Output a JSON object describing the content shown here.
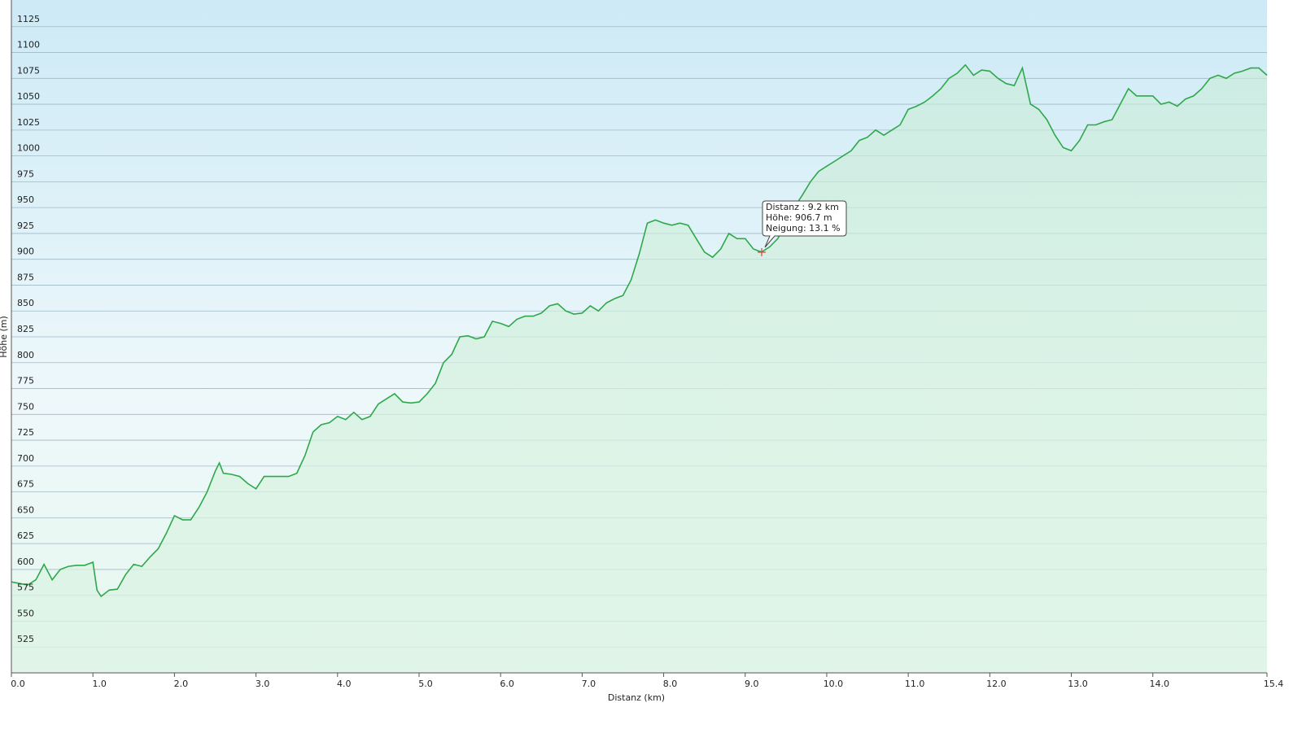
{
  "chart_data": {
    "type": "line",
    "title_x": "Distanz  (km)",
    "title_y": "Höhe (m)",
    "annotation": [
      "Distanz  : 9.2 km",
      "Höhe: 906.7 m",
      "Neigung: 13.1 %"
    ],
    "xlim": [
      0,
      15.4
    ],
    "ylim": [
      500,
      1150
    ],
    "xticks": [
      {
        "value": 0,
        "label": "0.0"
      },
      {
        "value": 1,
        "label": "1.0"
      },
      {
        "value": 2,
        "label": "2.0"
      },
      {
        "value": 3,
        "label": "3.0"
      },
      {
        "value": 4,
        "label": "4.0"
      },
      {
        "value": 5,
        "label": "5.0"
      },
      {
        "value": 6,
        "label": "6.0"
      },
      {
        "value": 7,
        "label": "7.0"
      },
      {
        "value": 8,
        "label": "8.0"
      },
      {
        "value": 9,
        "label": "9.0"
      },
      {
        "value": 10,
        "label": "10.0"
      },
      {
        "value": 11,
        "label": "11.0"
      },
      {
        "value": 12,
        "label": "12.0"
      },
      {
        "value": 13,
        "label": "13.0"
      },
      {
        "value": 14,
        "label": "14.0"
      },
      15.4
    ],
    "yticks": [
      525,
      550,
      575,
      600,
      625,
      650,
      675,
      700,
      725,
      750,
      775,
      800,
      825,
      850,
      875,
      900,
      925,
      950,
      975,
      1000,
      1025,
      1050,
      1075,
      1100,
      1125
    ],
    "grid": true,
    "color": "#2ea84a",
    "x": [
      0,
      0.2,
      0.3,
      0.4,
      0.5,
      0.6,
      0.7,
      0.8,
      0.9,
      1.0,
      1.05,
      1.1,
      1.2,
      1.3,
      1.4,
      1.5,
      1.6,
      1.7,
      1.8,
      1.9,
      2.0,
      2.1,
      2.2,
      2.3,
      2.4,
      2.5,
      2.55,
      2.6,
      2.7,
      2.8,
      2.9,
      3.0,
      3.1,
      3.2,
      3.3,
      3.4,
      3.5,
      3.6,
      3.7,
      3.8,
      3.9,
      4.0,
      4.1,
      4.2,
      4.3,
      4.4,
      4.5,
      4.6,
      4.7,
      4.8,
      4.9,
      5.0,
      5.1,
      5.2,
      5.3,
      5.4,
      5.5,
      5.6,
      5.7,
      5.8,
      5.9,
      6.0,
      6.1,
      6.2,
      6.3,
      6.4,
      6.5,
      6.6,
      6.7,
      6.8,
      6.9,
      7.0,
      7.1,
      7.2,
      7.3,
      7.4,
      7.5,
      7.6,
      7.7,
      7.8,
      7.9,
      8.0,
      8.1,
      8.2,
      8.3,
      8.4,
      8.5,
      8.6,
      8.7,
      8.8,
      8.9,
      9.0,
      9.1,
      9.2,
      9.3,
      9.4,
      9.5,
      9.6,
      9.7,
      9.8,
      9.9,
      10.0,
      10.1,
      10.2,
      10.3,
      10.4,
      10.5,
      10.6,
      10.7,
      10.8,
      10.9,
      11.0,
      11.1,
      11.2,
      11.3,
      11.4,
      11.5,
      11.6,
      11.7,
      11.8,
      11.9,
      12.0,
      12.1,
      12.2,
      12.3,
      12.4,
      12.5,
      12.6,
      12.7,
      12.8,
      12.9,
      13.0,
      13.1,
      13.2,
      13.3,
      13.4,
      13.5,
      13.6,
      13.7,
      13.8,
      13.9,
      14.0,
      14.1,
      14.2,
      14.3,
      14.4,
      14.5,
      14.6,
      14.7,
      14.8,
      14.9,
      15.0,
      15.1,
      15.2,
      15.3,
      15.4
    ],
    "values": [
      588,
      585,
      590,
      605,
      590,
      600,
      603,
      604,
      604,
      607,
      580,
      574,
      580,
      581,
      595,
      605,
      603,
      612,
      620,
      635,
      652,
      648,
      648,
      660,
      675,
      695,
      703,
      693,
      692,
      690,
      683,
      678,
      690,
      690,
      690,
      690,
      693,
      710,
      733,
      740,
      742,
      748,
      745,
      752,
      745,
      748,
      760,
      765,
      770,
      762,
      761,
      762,
      770,
      780,
      800,
      808,
      825,
      826,
      823,
      825,
      840,
      838,
      835,
      842,
      845,
      845,
      848,
      855,
      857,
      850,
      847,
      848,
      855,
      850,
      858,
      862,
      865,
      880,
      905,
      935,
      938,
      935,
      933,
      935,
      933,
      920,
      907,
      902,
      910,
      925,
      920,
      920,
      910,
      907,
      912,
      920,
      935,
      950,
      962,
      975,
      985,
      990,
      995,
      1000,
      1005,
      1015,
      1018,
      1025,
      1020,
      1025,
      1030,
      1045,
      1048,
      1052,
      1058,
      1065,
      1075,
      1080,
      1088,
      1078,
      1083,
      1082,
      1075,
      1070,
      1068,
      1085,
      1050,
      1045,
      1035,
      1020,
      1008,
      1005,
      1015,
      1030,
      1030,
      1033,
      1035,
      1050,
      1065,
      1058,
      1058,
      1058,
      1050,
      1052,
      1048,
      1055,
      1058,
      1065,
      1075,
      1078,
      1075,
      1080,
      1082,
      1085,
      1085,
      1078
    ]
  }
}
